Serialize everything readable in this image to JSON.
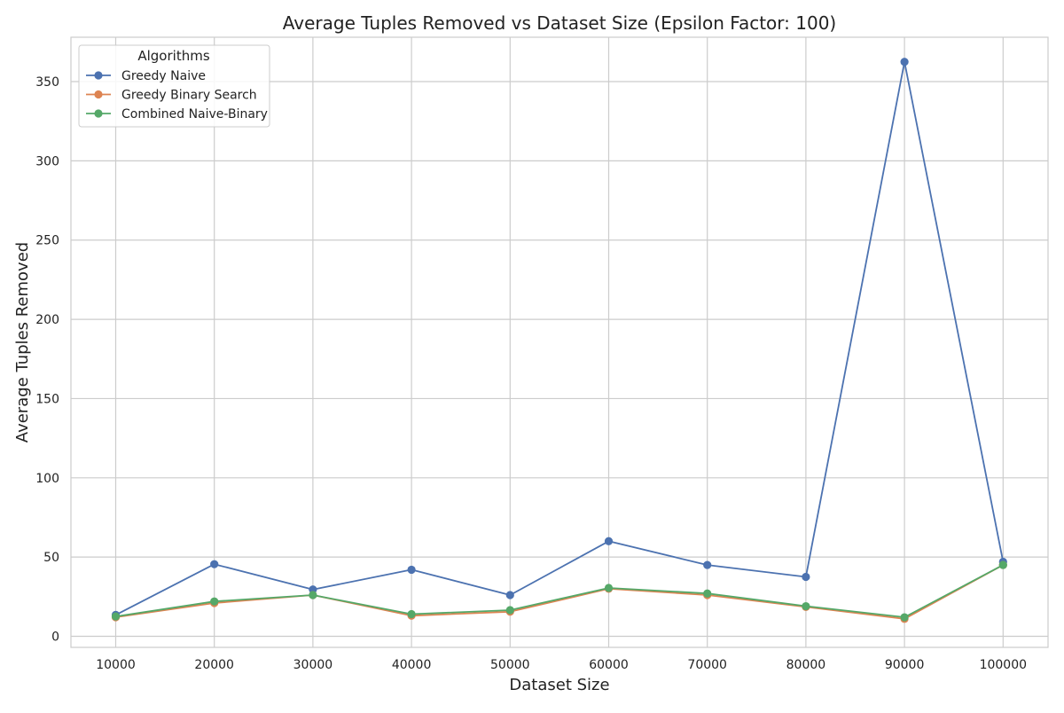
{
  "chart_data": {
    "type": "line",
    "title": "Average Tuples Removed vs Dataset Size (Epsilon Factor: 100)",
    "xlabel": "Dataset Size",
    "ylabel": "Average Tuples Removed",
    "categories": [
      "10000",
      "20000",
      "30000",
      "40000",
      "50000",
      "60000",
      "70000",
      "80000",
      "90000",
      "100000"
    ],
    "x": [
      10000,
      20000,
      30000,
      40000,
      50000,
      60000,
      70000,
      80000,
      90000,
      100000
    ],
    "ylim": [
      -7,
      378
    ],
    "yticks": [
      0,
      50,
      100,
      150,
      200,
      250,
      300,
      350
    ],
    "grid": true,
    "legend": {
      "title": "Algorithms",
      "position": "top-left"
    },
    "series": [
      {
        "name": "Greedy Naive",
        "color": "#4c72b0",
        "values": [
          13.5,
          45.5,
          29.5,
          42,
          26,
          60,
          45,
          37.5,
          362.5,
          47
        ]
      },
      {
        "name": "Greedy Binary Search",
        "color": "#dd8452",
        "values": [
          12,
          21,
          26,
          13,
          15.5,
          30,
          26,
          18.5,
          11,
          45
        ]
      },
      {
        "name": "Combined Naive-Binary",
        "color": "#55a868",
        "values": [
          12.5,
          22,
          26,
          14,
          16.5,
          30.5,
          27,
          19,
          12,
          45
        ]
      }
    ]
  }
}
